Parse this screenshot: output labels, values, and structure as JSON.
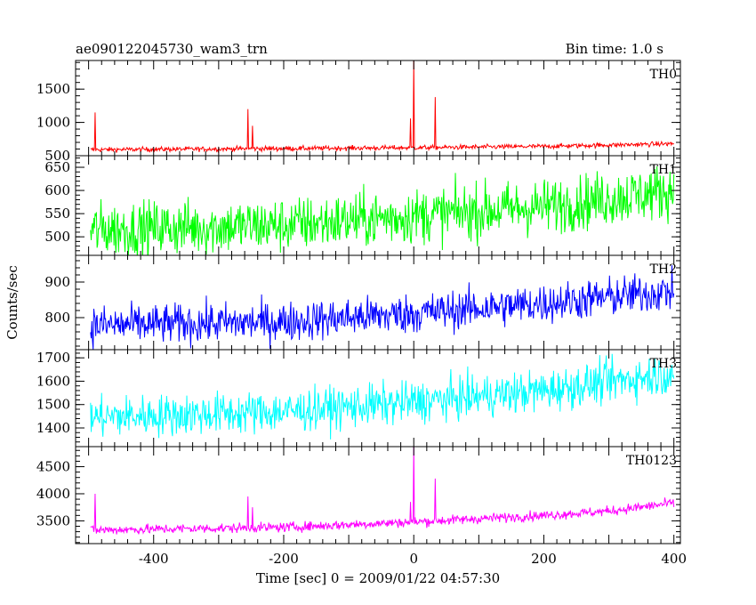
{
  "header": {
    "title": "ae090122045730_wam3_trn",
    "bin_time": "Bin time: 1.0 s"
  },
  "chart_data": {
    "type": "line",
    "title": "ae090122045730_wam3_trn",
    "subtitle": "Bin time: 1.0 s",
    "xlabel": "Time [sec] 0 = 2009/01/22 04:57:30",
    "ylabel": "Counts/sec",
    "xlim": [
      -520,
      410
    ],
    "x_ticks": [
      -400,
      -200,
      0,
      200,
      400
    ],
    "x_data_range": [
      -497,
      400
    ],
    "grid": false,
    "panels": [
      {
        "name": "TH0",
        "color": "#ff0000",
        "ylim": [
          500,
          1930
        ],
        "y_ticks": [
          500,
          1000,
          1500
        ],
        "baseline": [
          [
            -497,
            590
          ],
          [
            0,
            620
          ],
          [
            200,
            640
          ],
          [
            400,
            680
          ]
        ],
        "noise": 18,
        "spikes": [
          {
            "x": -490,
            "y": 1150
          },
          {
            "x": -255,
            "y": 1200
          },
          {
            "x": -248,
            "y": 950
          },
          {
            "x": -5,
            "y": 1060
          },
          {
            "x": 0,
            "y": 1930
          },
          {
            "x": 33,
            "y": 1380
          }
        ]
      },
      {
        "name": "TH1",
        "color": "#00ff00",
        "ylim": [
          460,
          675
        ],
        "y_ticks": [
          500,
          550,
          600,
          650
        ],
        "baseline": [
          [
            -497,
            515
          ],
          [
            -200,
            525
          ],
          [
            0,
            545
          ],
          [
            200,
            565
          ],
          [
            400,
            600
          ]
        ],
        "noise": 30,
        "spikes": []
      },
      {
        "name": "TH2",
        "color": "#0000ff",
        "ylim": [
          710,
          975
        ],
        "y_ticks": [
          800,
          900
        ],
        "baseline": [
          [
            -497,
            778
          ],
          [
            -200,
            788
          ],
          [
            0,
            812
          ],
          [
            200,
            840
          ],
          [
            400,
            875
          ]
        ],
        "noise": 28,
        "spikes": []
      },
      {
        "name": "TH3",
        "color": "#00ffff",
        "ylim": [
          1320,
          1735
        ],
        "y_ticks": [
          1400,
          1500,
          1600,
          1700
        ],
        "baseline": [
          [
            -497,
            1445
          ],
          [
            -200,
            1470
          ],
          [
            0,
            1510
          ],
          [
            200,
            1560
          ],
          [
            400,
            1635
          ]
        ],
        "noise": 45,
        "spikes": []
      },
      {
        "name": "TH0123",
        "color": "#ff00ff",
        "ylim": [
          3080,
          4870
        ],
        "y_ticks": [
          3500,
          4000,
          4500
        ],
        "baseline": [
          [
            -497,
            3330
          ],
          [
            -200,
            3380
          ],
          [
            0,
            3480
          ],
          [
            200,
            3600
          ],
          [
            300,
            3680
          ],
          [
            400,
            3830
          ]
        ],
        "noise": 45,
        "spikes": [
          {
            "x": -490,
            "y": 4000
          },
          {
            "x": -255,
            "y": 3950
          },
          {
            "x": -248,
            "y": 3750
          },
          {
            "x": -5,
            "y": 3850
          },
          {
            "x": 0,
            "y": 4870
          },
          {
            "x": 33,
            "y": 4280
          }
        ]
      }
    ]
  }
}
